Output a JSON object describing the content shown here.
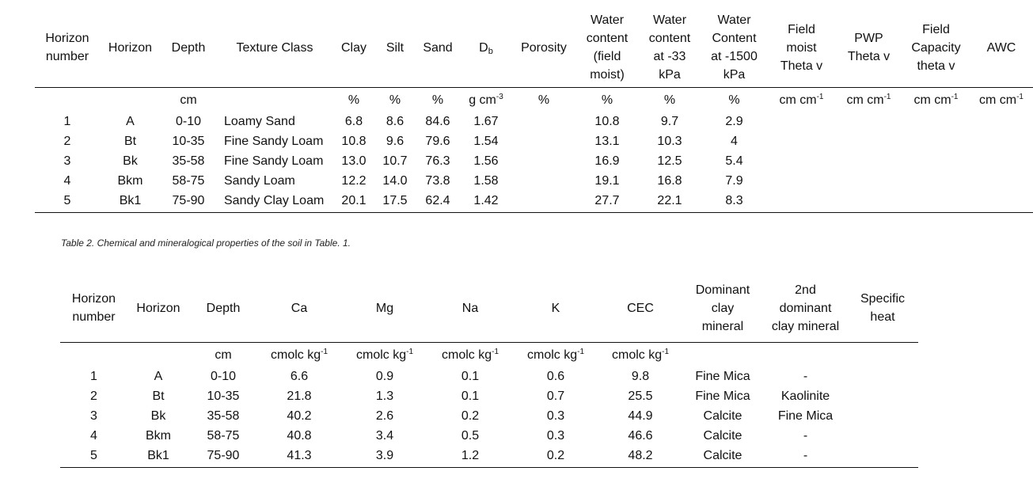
{
  "table1": {
    "headers": [
      [
        "Horizon",
        "number"
      ],
      [
        "Horizon"
      ],
      [
        "Depth"
      ],
      [
        "Texture Class"
      ],
      [
        "Clay"
      ],
      [
        "Silt"
      ],
      [
        "Sand"
      ],
      [
        "D_b"
      ],
      [
        "Porosity"
      ],
      [
        "Water",
        "content",
        "(field",
        "moist)"
      ],
      [
        "Water",
        "content",
        "at -33",
        "kPa"
      ],
      [
        "Water",
        "Content",
        "at -1500",
        "kPa"
      ],
      [
        "Field",
        "moist",
        "Theta v"
      ],
      [
        "PWP",
        "Theta v"
      ],
      [
        "Field",
        "Capacity",
        "theta v"
      ],
      [
        "AWC"
      ]
    ],
    "db_main": "D",
    "db_sub": "b",
    "units": {
      "depth": "cm",
      "clay": "%",
      "silt": "%",
      "sand": "%",
      "db_base": "g cm",
      "db_exp": "-3",
      "porosity": "%",
      "wc_field": "%",
      "wc_33": "%",
      "wc_1500": "%",
      "vol_base": "cm cm",
      "vol_exp": "-1"
    },
    "rows": [
      [
        "1",
        "A",
        "0-10",
        "Loamy Sand",
        "6.8",
        "8.6",
        "84.6",
        "1.67",
        "",
        "10.8",
        "9.7",
        "2.9",
        "",
        "",
        "",
        ""
      ],
      [
        "2",
        "Bt",
        "10-35",
        "Fine Sandy Loam",
        "10.8",
        "9.6",
        "79.6",
        "1.54",
        "",
        "13.1",
        "10.3",
        "4",
        "",
        "",
        "",
        ""
      ],
      [
        "3",
        "Bk",
        "35-58",
        "Fine Sandy Loam",
        "13.0",
        "10.7",
        "76.3",
        "1.56",
        "",
        "16.9",
        "12.5",
        "5.4",
        "",
        "",
        "",
        ""
      ],
      [
        "4",
        "Bkm",
        "58-75",
        "Sandy Loam",
        "12.2",
        "14.0",
        "73.8",
        "1.58",
        "",
        "19.1",
        "16.8",
        "7.9",
        "",
        "",
        "",
        ""
      ],
      [
        "5",
        "Bk1",
        "75-90",
        "Sandy Clay Loam",
        "20.1",
        "17.5",
        "62.4",
        "1.42",
        "",
        "27.7",
        "22.1",
        "8.3",
        "",
        "",
        "",
        ""
      ]
    ]
  },
  "caption2": "Table 2. Chemical and mineralogical properties of the soil in Table. 1.",
  "table2": {
    "headers": [
      [
        "Horizon",
        "number"
      ],
      [
        "Horizon"
      ],
      [
        "Depth"
      ],
      [
        "Ca"
      ],
      [
        "Mg"
      ],
      [
        "Na"
      ],
      [
        "K"
      ],
      [
        "CEC"
      ],
      [
        "Dominant",
        "clay",
        "mineral"
      ],
      [
        "2nd",
        "dominant",
        "clay mineral"
      ],
      [
        "Specific",
        "heat"
      ]
    ],
    "units": {
      "depth": "cm",
      "chem_base": "cmolc kg",
      "chem_exp": "-1"
    },
    "rows": [
      [
        "1",
        "A",
        "0-10",
        "6.6",
        "0.9",
        "0.1",
        "0.6",
        "9.8",
        "Fine Mica",
        "-",
        ""
      ],
      [
        "2",
        "Bt",
        "10-35",
        "21.8",
        "1.3",
        "0.1",
        "0.7",
        "25.5",
        "Fine Mica",
        "Kaolinite",
        ""
      ],
      [
        "3",
        "Bk",
        "35-58",
        "40.2",
        "2.6",
        "0.2",
        "0.3",
        "44.9",
        "Calcite",
        "Fine Mica",
        ""
      ],
      [
        "4",
        "Bkm",
        "58-75",
        "40.8",
        "3.4",
        "0.5",
        "0.3",
        "46.6",
        "Calcite",
        "-",
        ""
      ],
      [
        "5",
        "Bk1",
        "75-90",
        "41.3",
        "3.9",
        "1.2",
        "0.2",
        "48.2",
        "Calcite",
        "-",
        ""
      ]
    ]
  }
}
